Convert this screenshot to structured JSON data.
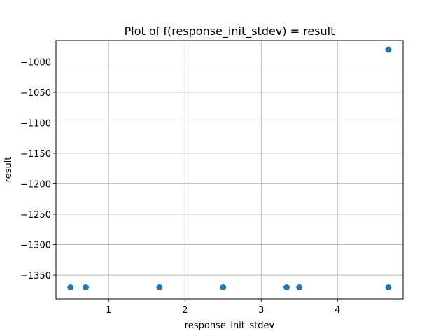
{
  "chart_data": {
    "type": "scatter",
    "title": "Plot of f(response_init_stdev) = result",
    "xlabel": "response_init_stdev",
    "ylabel": "result",
    "xlim": [
      0.31,
      4.86
    ],
    "ylim": [
      -1389,
      -965
    ],
    "xticks": [
      1,
      2,
      3,
      4
    ],
    "xtick_labels": [
      "1",
      "2",
      "3",
      "4"
    ],
    "yticks": [
      -1000,
      -1050,
      -1100,
      -1150,
      -1200,
      -1250,
      -1300,
      -1350
    ],
    "ytick_labels": [
      "−1000",
      "−1050",
      "−1100",
      "−1150",
      "−1200",
      "−1250",
      "−1300",
      "−1350"
    ],
    "grid": true,
    "marker_color": "#1f77b4",
    "series": [
      {
        "points": [
          {
            "x": 0.5,
            "y": -1370
          },
          {
            "x": 0.7,
            "y": -1370
          },
          {
            "x": 1.667,
            "y": -1370
          },
          {
            "x": 2.5,
            "y": -1370
          },
          {
            "x": 3.333,
            "y": -1370
          },
          {
            "x": 3.5,
            "y": -1370
          },
          {
            "x": 4.667,
            "y": -1370
          },
          {
            "x": 4.667,
            "y": -980
          }
        ]
      }
    ]
  }
}
